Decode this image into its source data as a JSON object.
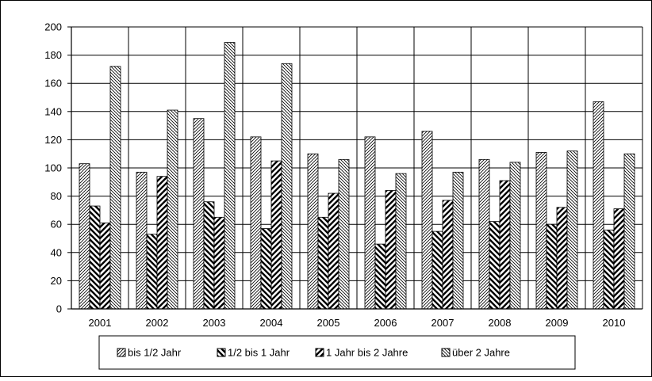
{
  "chart_data": {
    "type": "bar",
    "title": "",
    "xlabel": "",
    "ylabel": "",
    "categories": [
      "2001",
      "2002",
      "2003",
      "2004",
      "2005",
      "2006",
      "2007",
      "2008",
      "2009",
      "2010"
    ],
    "series": [
      {
        "name": "bis 1/2 Jahr",
        "pattern": "diag-fine-up",
        "values": [
          103,
          97,
          135,
          122,
          110,
          122,
          126,
          106,
          111,
          147
        ]
      },
      {
        "name": "1/2 bis 1 Jahr",
        "pattern": "diag-bold-down",
        "values": [
          73,
          53,
          76,
          57,
          65,
          46,
          55,
          62,
          60,
          56
        ]
      },
      {
        "name": "1 Jahr bis 2 Jahre",
        "pattern": "diag-bold-up",
        "values": [
          61,
          94,
          65,
          105,
          82,
          84,
          77,
          91,
          72,
          71
        ]
      },
      {
        "name": "über 2 Jahre",
        "pattern": "diag-fine-down",
        "values": [
          172,
          141,
          189,
          174,
          106,
          96,
          97,
          104,
          112,
          110
        ]
      }
    ],
    "ylim": [
      0,
      200
    ],
    "yticks": [
      0,
      20,
      40,
      60,
      80,
      100,
      120,
      140,
      160,
      180,
      200
    ],
    "grid": true,
    "legend_position": "bottom",
    "colors": {
      "bar_stroke": "#000000",
      "pattern_line": "#000000",
      "bar_fill": "#ffffff",
      "grid": "#000000"
    }
  }
}
